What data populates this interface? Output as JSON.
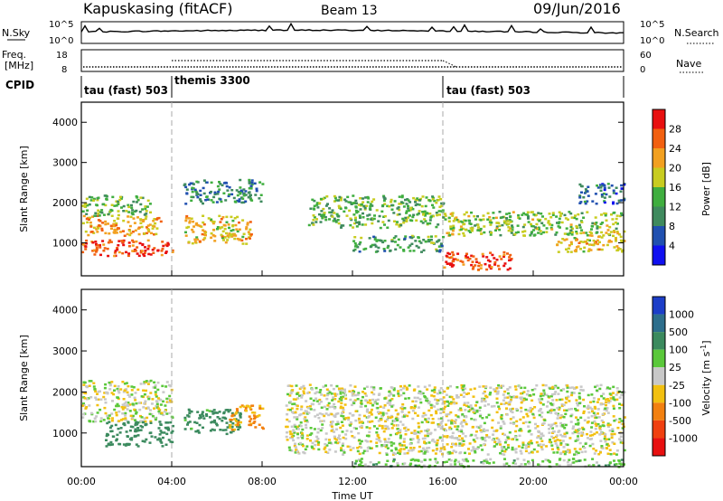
{
  "header": {
    "station": "Kapuskasing (fitACF)",
    "beam": "Beam 13",
    "date": "09/Jun/2016"
  },
  "noise_panel": {
    "left_label": "N.Sky",
    "right_label": "N.Search",
    "left_ticks": [
      "10^5",
      "10^0"
    ],
    "right_ticks": [
      "10^5",
      "10^0"
    ]
  },
  "freq_panel": {
    "left_label_line1": "Freq.",
    "left_label_line2": "[MHz]",
    "right_label": "Nave",
    "left_ticks": [
      "18",
      "8"
    ],
    "right_ticks": [
      "60",
      "0"
    ]
  },
  "cpid_panel": {
    "label": "CPID",
    "modes": [
      {
        "start_hour": 0,
        "text": "tau (fast) 503"
      },
      {
        "start_hour": 4,
        "text": "themis 3300"
      },
      {
        "start_hour": 16,
        "text": "tau (fast) 503"
      }
    ]
  },
  "power_panel": {
    "ylabel": "Slant Range [km]",
    "yticks": [
      "1000",
      "2000",
      "3000",
      "4000"
    ],
    "colorbar_label": "Power [dB]",
    "colorbar_ticks": [
      "4",
      "8",
      "12",
      "16",
      "20",
      "24",
      "28"
    ],
    "colorbar_colors": [
      "#1010f0",
      "#2050b0",
      "#3f8a5e",
      "#3fae3f",
      "#c8cc20",
      "#f2a020",
      "#f26010",
      "#e81010"
    ]
  },
  "velocity_panel": {
    "ylabel": "Slant Range [km]",
    "yticks": [
      "1000",
      "2000",
      "3000",
      "4000"
    ],
    "colorbar_label": "Velocity [m s",
    "colorbar_label_exp": "-1",
    "colorbar_label_close": "]",
    "colorbar_ticks": [
      "1000",
      "500",
      "100",
      "25",
      "-25",
      "-100",
      "-500",
      "-1000"
    ],
    "colorbar_colors": [
      "#1c3ec8",
      "#2d6e8c",
      "#3b8a5e",
      "#5ac83a",
      "#c8c8c8",
      "#f2c010",
      "#f28010",
      "#f04010",
      "#e81010"
    ]
  },
  "xaxis": {
    "label": "Time UT",
    "ticks": [
      "00:00",
      "04:00",
      "08:00",
      "12:00",
      "16:00",
      "20:00",
      "00:00"
    ]
  },
  "chart_data": {
    "type": "heatmap",
    "title": "Kapuskasing (fitACF)  Beam 13  09/Jun/2016",
    "xlabel": "Time UT",
    "ylabel": "Slant Range [km]",
    "xlim_hours": [
      0,
      24
    ],
    "ylim_km": [
      180,
      4500
    ],
    "mode_boundaries_hours": [
      4,
      16
    ],
    "power_regions": [
      {
        "t0": 0.0,
        "t1": 4.0,
        "r0": 700,
        "r1": 1100,
        "dB": 28
      },
      {
        "t0": 0.0,
        "t1": 3.5,
        "r0": 1200,
        "r1": 1700,
        "dB": 22
      },
      {
        "t0": 0.0,
        "t1": 3.0,
        "r0": 1700,
        "r1": 2200,
        "dB": 14
      },
      {
        "t0": 4.5,
        "t1": 7.5,
        "r0": 1000,
        "r1": 1700,
        "dB": 20
      },
      {
        "t0": 4.5,
        "t1": 8.0,
        "r0": 2000,
        "r1": 2600,
        "dB": 10
      },
      {
        "t0": 10.0,
        "t1": 16.0,
        "r0": 1400,
        "r1": 2200,
        "dB": 14
      },
      {
        "t0": 12.0,
        "t1": 16.0,
        "r0": 800,
        "r1": 1200,
        "dB": 12
      },
      {
        "t0": 16.0,
        "t1": 19.0,
        "r0": 350,
        "r1": 800,
        "dB": 28
      },
      {
        "t0": 16.0,
        "t1": 24.0,
        "r0": 1200,
        "r1": 1800,
        "dB": 16
      },
      {
        "t0": 21.0,
        "t1": 24.0,
        "r0": 800,
        "r1": 1300,
        "dB": 20
      },
      {
        "t0": 22.0,
        "t1": 24.0,
        "r0": 2000,
        "r1": 2500,
        "dB": 8
      }
    ],
    "velocity_regions": [
      {
        "t0": 0.0,
        "t1": 4.0,
        "r0": 1300,
        "r1": 2300,
        "v": 0
      },
      {
        "t0": 1.0,
        "t1": 4.0,
        "r0": 700,
        "r1": 1300,
        "v": 300
      },
      {
        "t0": 4.5,
        "t1": 7.0,
        "r0": 1000,
        "r1": 1600,
        "v": 150
      },
      {
        "t0": 6.5,
        "t1": 8.0,
        "r0": 1100,
        "r1": 1700,
        "v": -100
      },
      {
        "t0": 9.0,
        "t1": 24.0,
        "r0": 500,
        "r1": 2200,
        "v": 0
      },
      {
        "t0": 12.0,
        "t1": 24.0,
        "r0": 200,
        "r1": 400,
        "v": 50
      }
    ]
  }
}
